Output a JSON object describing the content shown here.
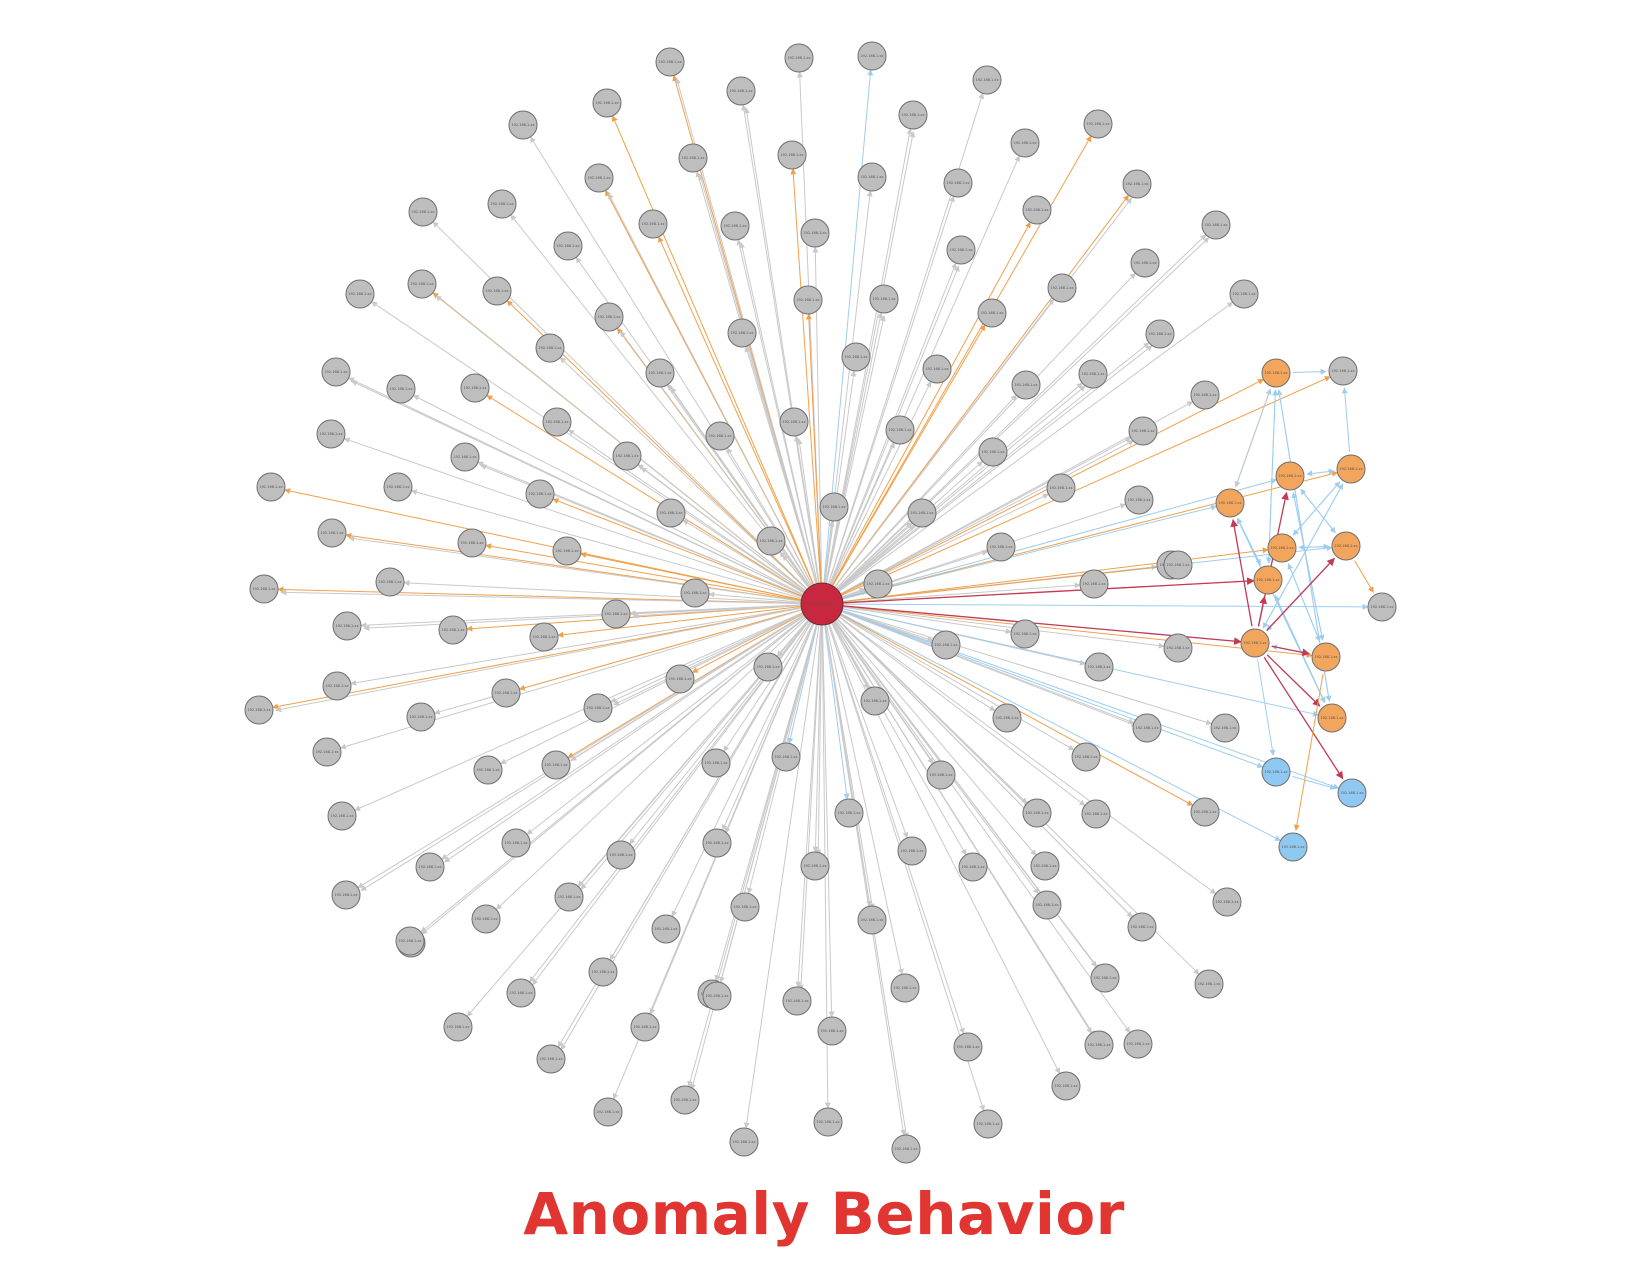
{
  "caption": "Anomaly Behavior",
  "colors": {
    "center": "#c8283f",
    "gray_node": "#bebebe",
    "orange_node": "#f2a55c",
    "blue_node": "#8fc8f0",
    "edge_gray": "#c9c9c9",
    "edge_orange": "#f0a04a",
    "edge_blue": "#9fcdf0",
    "edge_red": "#c23a55",
    "caption": "#e03531"
  },
  "legend_note": "",
  "graph": {
    "center_label": "192.168.1.10",
    "node_label": "192.168.1.xx"
  }
}
